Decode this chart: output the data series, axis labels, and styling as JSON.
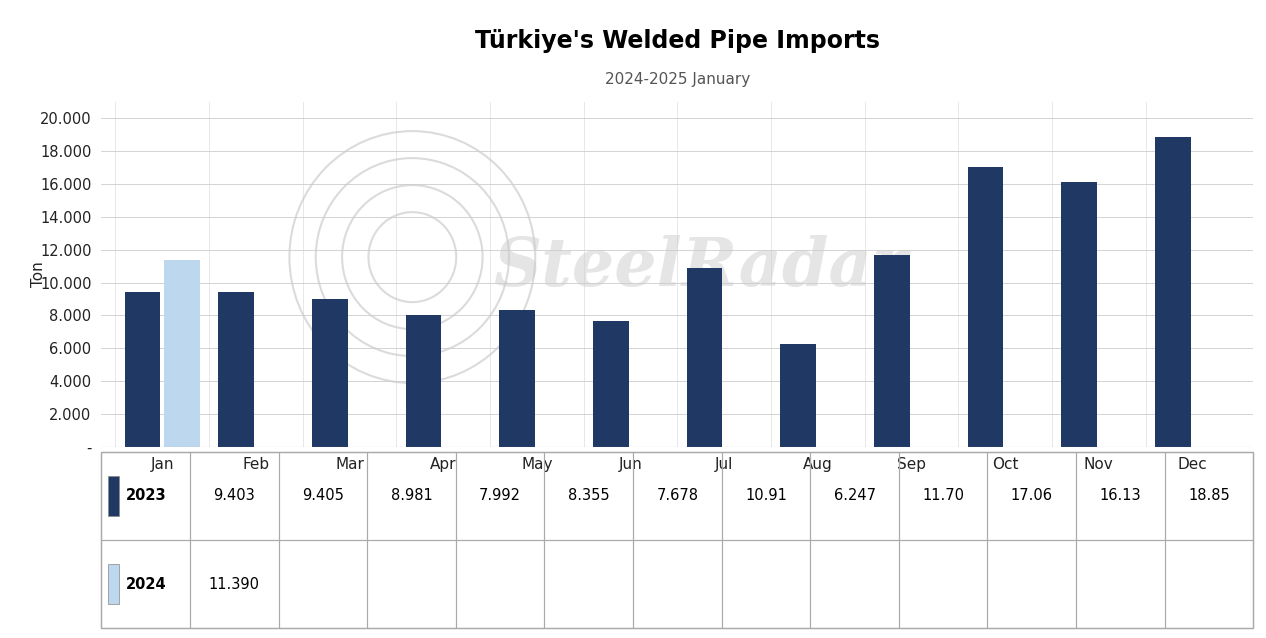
{
  "title": "Türkiye's Welded Pipe Imports",
  "subtitle": "2024-2025 January",
  "ylabel": "Ton",
  "months": [
    "Jan",
    "Feb",
    "Mar",
    "Apr",
    "May",
    "Jun",
    "Jul",
    "Aug",
    "Sep",
    "Oct",
    "Nov",
    "Dec"
  ],
  "data_2023": [
    9403,
    9405,
    8981,
    7992,
    8355,
    7678,
    10910,
    6247,
    11700,
    17060,
    16130,
    18850
  ],
  "data_2024": [
    11390,
    null,
    null,
    null,
    null,
    null,
    null,
    null,
    null,
    null,
    null,
    null
  ],
  "bar_color_2023": "#1F3864",
  "bar_color_2024": "#BDD7EE",
  "ylim": [
    0,
    21000
  ],
  "yticks": [
    0,
    2000,
    4000,
    6000,
    8000,
    10000,
    12000,
    14000,
    16000,
    18000,
    20000
  ],
  "ytick_labels": [
    "-",
    "2.000",
    "4.000",
    "6.000",
    "8.000",
    "10.000",
    "12.000",
    "14.000",
    "16.000",
    "18.000",
    "20.000"
  ],
  "table_2023_label": "2023",
  "table_2024_label": "2024",
  "table_2023_values": [
    "9.403",
    "9.405",
    "8.981",
    "7.992",
    "8.355",
    "7.678",
    "10.91",
    "6.247",
    "11.70",
    "17.06",
    "16.13",
    "18.85"
  ],
  "table_2024_values": [
    "11.390",
    "",
    "",
    "",
    "",
    "",
    "",
    "",
    "",
    "",
    "",
    ""
  ],
  "watermark_text": "SteelRadar",
  "background_color": "#FFFFFF",
  "bar_width": 0.38,
  "bar_gap": 0.04
}
